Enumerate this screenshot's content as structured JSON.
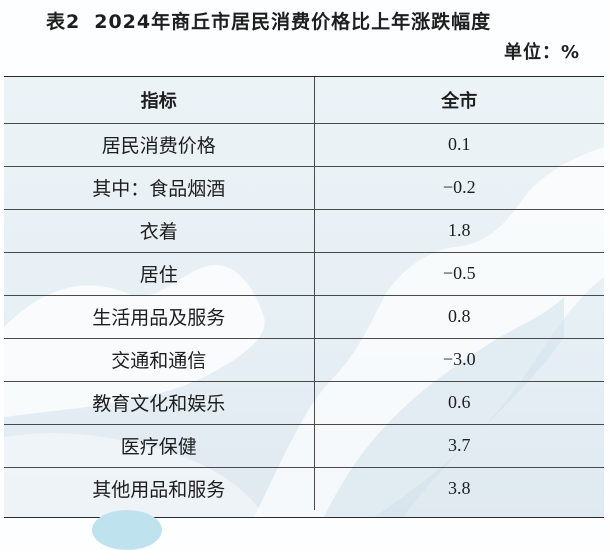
{
  "title": {
    "number": "表2",
    "text": "2024年商丘市居民消费价格比上年涨跌幅度"
  },
  "unit": "单位：%",
  "table": {
    "headers": [
      "指标",
      "全市"
    ],
    "rows": [
      {
        "label": "居民消费价格",
        "value": "0.1"
      },
      {
        "label": "其中：食品烟酒",
        "value": "−0.2"
      },
      {
        "label": "衣着",
        "value": "1.8"
      },
      {
        "label": "居住",
        "value": "−0.5"
      },
      {
        "label": "生活用品及服务",
        "value": "0.8"
      },
      {
        "label": "交通和通信",
        "value": "−3.0"
      },
      {
        "label": "教育文化和娱乐",
        "value": "0.6"
      },
      {
        "label": "医疗保健",
        "value": "3.7"
      },
      {
        "label": "其他用品和服务",
        "value": "3.8"
      }
    ]
  },
  "colors": {
    "table_background": "#e6eff4",
    "art_white": "#ffffff",
    "border": "#4a4a4a"
  }
}
